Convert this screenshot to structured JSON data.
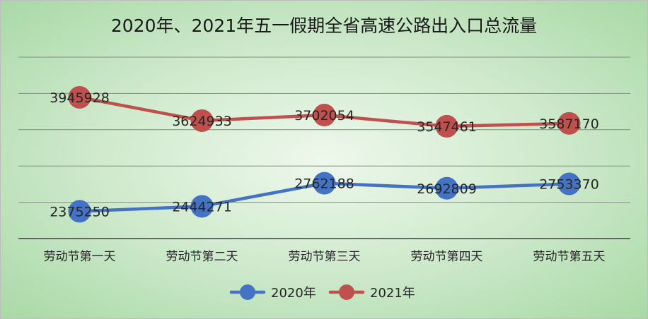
{
  "chart_data": {
    "type": "line",
    "title": "2020年、2021年五一假期全省高速公路出入口总流量",
    "categories": [
      "劳动节第一天",
      "劳动节第二天",
      "劳动节第三天",
      "劳动节第四天",
      "劳动节第五天"
    ],
    "series": [
      {
        "name": "2020年",
        "values": [
          2375250,
          2444271,
          2762188,
          2692809,
          2753370
        ],
        "value_labels": [
          "2375250",
          "2444271",
          "2762188",
          "2692809",
          "2753370"
        ],
        "color": "#4472c4"
      },
      {
        "name": "2021年",
        "values": [
          3945928,
          3624933,
          3702054,
          3547461,
          3587170
        ],
        "value_labels": [
          "3945928",
          "3624933",
          "3702054",
          "3547461",
          "3587170"
        ],
        "color": "#c0504d"
      }
    ],
    "ylim": [
      2000000,
      4500000
    ],
    "grid": true,
    "legend": "bottom",
    "data_labels": true,
    "colors": {
      "gridline": "#7f8f7f",
      "axis": "#404040",
      "text": "#262626"
    }
  }
}
